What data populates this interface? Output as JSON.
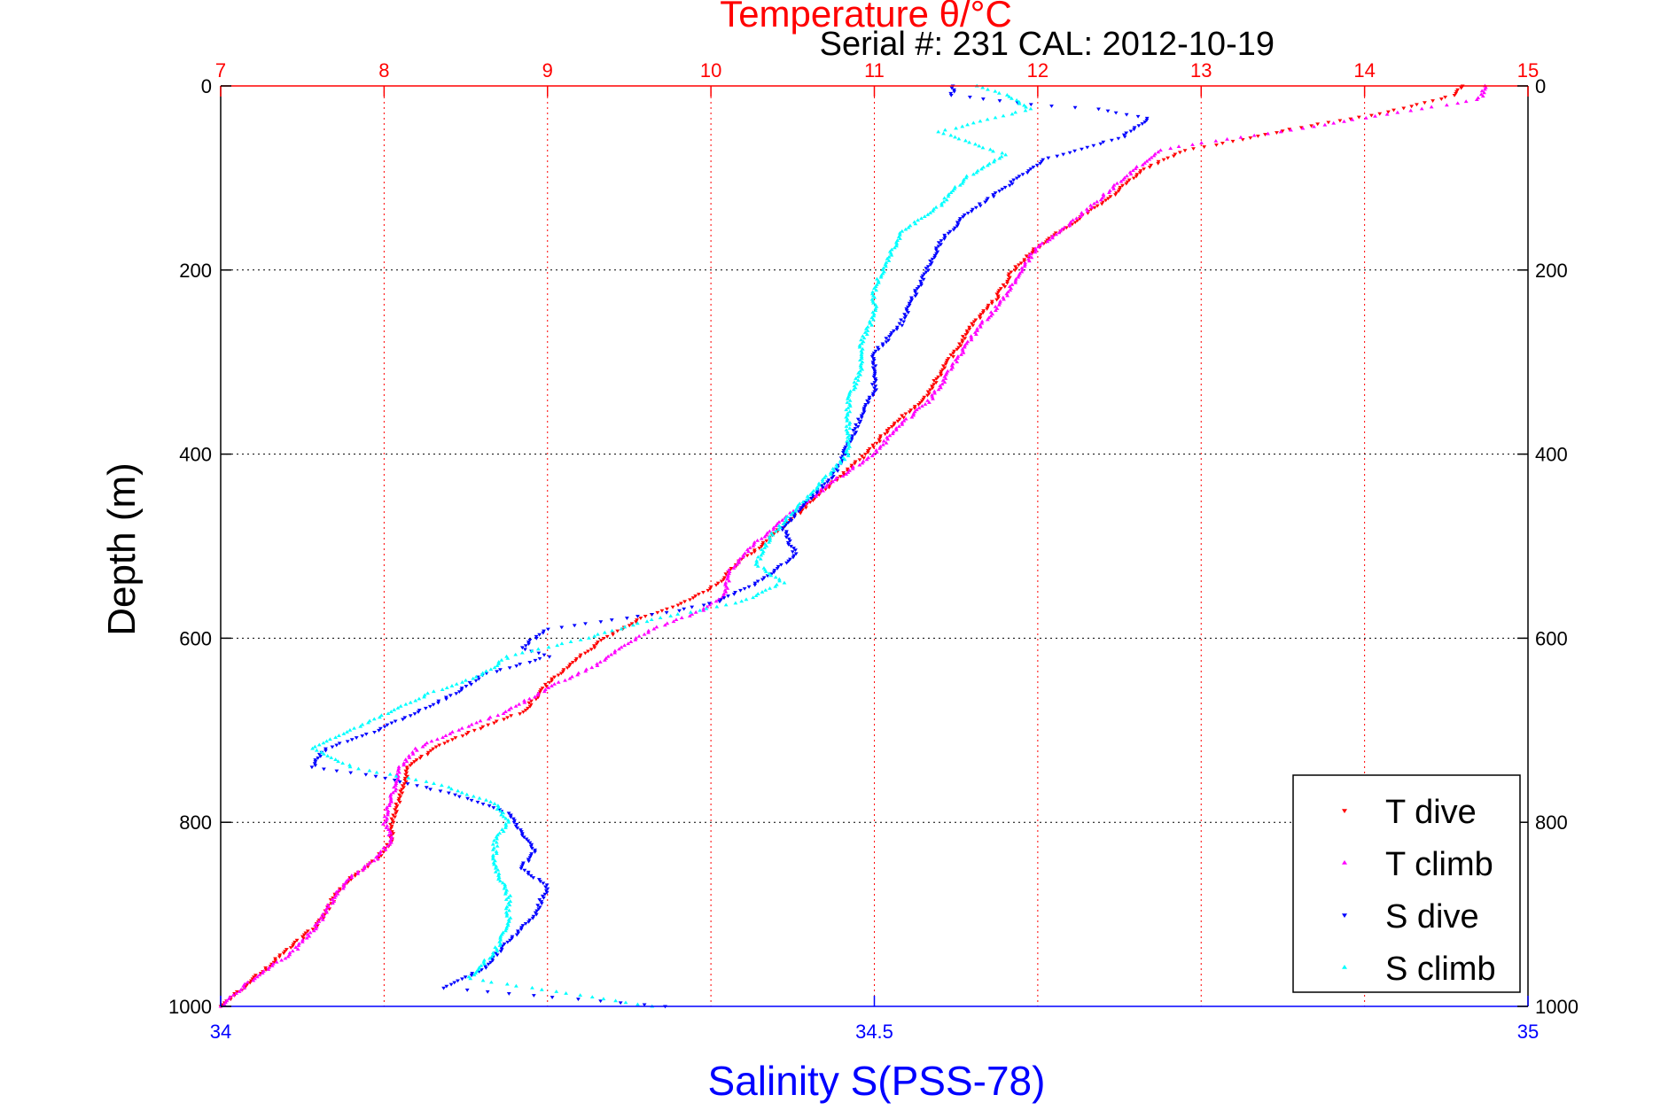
{
  "colors": {
    "temperature_axis": "#ff0000",
    "salinity_axis": "#0000ff",
    "t_dive": "#ff0000",
    "t_climb": "#ff00ff",
    "s_dive": "#0000ff",
    "s_climb": "#00ffff",
    "text": "#000000",
    "grid": "#000000"
  },
  "chart_data": {
    "type": "scatter",
    "title": "Temperature θ/°C",
    "subtitle": "Serial #: 231  CAL: 2012-10-19",
    "xlabel_top": "Temperature θ/°C",
    "xlabel_bottom": "Salinity S(PSS-78)",
    "ylabel": "Depth (m)",
    "ylim": [
      0,
      1000
    ],
    "y_reversed": true,
    "y_ticks": [
      "0",
      "200",
      "400",
      "600",
      "800",
      "1000"
    ],
    "x_top": {
      "lim": [
        7,
        15
      ],
      "ticks": [
        "7",
        "8",
        "9",
        "10",
        "11",
        "12",
        "13",
        "14",
        "15"
      ],
      "color": "red",
      "grid": true
    },
    "x_bottom": {
      "lim": [
        34,
        35
      ],
      "ticks": [
        "34",
        "34.5",
        "35"
      ],
      "color": "blue",
      "grid": false
    },
    "grid": true,
    "legend_placement": "bottom-right",
    "legend": [
      "T dive",
      "T climb",
      "S dive",
      "S climb"
    ],
    "series": [
      {
        "name": "T dive",
        "axis": "temperature",
        "marker": "triangle-down",
        "points": [
          [
            14.6,
            0
          ],
          [
            14.55,
            10
          ],
          [
            14.1,
            30
          ],
          [
            13.6,
            45
          ],
          [
            13.2,
            60
          ],
          [
            12.9,
            70
          ],
          [
            12.65,
            90
          ],
          [
            12.45,
            120
          ],
          [
            12.2,
            150
          ],
          [
            12.0,
            175
          ],
          [
            11.85,
            200
          ],
          [
            11.75,
            230
          ],
          [
            11.6,
            260
          ],
          [
            11.45,
            300
          ],
          [
            11.3,
            340
          ],
          [
            11.1,
            370
          ],
          [
            10.95,
            400
          ],
          [
            10.75,
            430
          ],
          [
            10.5,
            470
          ],
          [
            10.3,
            500
          ],
          [
            10.15,
            520
          ],
          [
            10.05,
            540
          ],
          [
            9.85,
            560
          ],
          [
            9.55,
            580
          ],
          [
            9.35,
            600
          ],
          [
            9.2,
            620
          ],
          [
            9.0,
            650
          ],
          [
            8.85,
            680
          ],
          [
            8.55,
            700
          ],
          [
            8.3,
            720
          ],
          [
            8.15,
            740
          ],
          [
            8.1,
            770
          ],
          [
            8.05,
            800
          ],
          [
            8.05,
            820
          ],
          [
            7.95,
            840
          ],
          [
            7.8,
            860
          ],
          [
            7.7,
            880
          ],
          [
            7.6,
            910
          ],
          [
            7.4,
            940
          ],
          [
            7.2,
            970
          ],
          [
            7.0,
            1000
          ]
        ]
      },
      {
        "name": "T climb",
        "axis": "temperature",
        "marker": "triangle-up",
        "points": [
          [
            14.75,
            0
          ],
          [
            14.7,
            15
          ],
          [
            14.0,
            35
          ],
          [
            13.5,
            50
          ],
          [
            13.0,
            62
          ],
          [
            12.75,
            70
          ],
          [
            12.6,
            90
          ],
          [
            12.4,
            120
          ],
          [
            12.2,
            150
          ],
          [
            12.0,
            175
          ],
          [
            11.9,
            200
          ],
          [
            11.8,
            230
          ],
          [
            11.65,
            260
          ],
          [
            11.5,
            300
          ],
          [
            11.35,
            340
          ],
          [
            11.15,
            370
          ],
          [
            11.0,
            400
          ],
          [
            10.75,
            430
          ],
          [
            10.45,
            470
          ],
          [
            10.25,
            500
          ],
          [
            10.1,
            530
          ],
          [
            10.1,
            550
          ],
          [
            9.95,
            570
          ],
          [
            9.65,
            590
          ],
          [
            9.45,
            610
          ],
          [
            9.3,
            630
          ],
          [
            9.05,
            650
          ],
          [
            8.75,
            680
          ],
          [
            8.45,
            700
          ],
          [
            8.2,
            720
          ],
          [
            8.1,
            740
          ],
          [
            8.05,
            770
          ],
          [
            8.0,
            800
          ],
          [
            8.05,
            820
          ],
          [
            7.95,
            840
          ],
          [
            7.8,
            860
          ],
          [
            7.7,
            880
          ],
          [
            7.6,
            910
          ],
          [
            7.45,
            940
          ],
          [
            7.2,
            970
          ],
          [
            7.0,
            1000
          ]
        ]
      },
      {
        "name": "S dive",
        "axis": "salinity",
        "marker": "triangle-down",
        "points": [
          [
            34.56,
            0
          ],
          [
            34.56,
            10
          ],
          [
            34.62,
            20
          ],
          [
            34.67,
            25
          ],
          [
            34.71,
            35
          ],
          [
            34.69,
            55
          ],
          [
            34.63,
            80
          ],
          [
            34.6,
            110
          ],
          [
            34.57,
            140
          ],
          [
            34.55,
            170
          ],
          [
            34.54,
            200
          ],
          [
            34.53,
            230
          ],
          [
            34.52,
            260
          ],
          [
            34.5,
            290
          ],
          [
            34.5,
            330
          ],
          [
            34.49,
            360
          ],
          [
            34.48,
            390
          ],
          [
            34.47,
            420
          ],
          [
            34.45,
            450
          ],
          [
            34.43,
            480
          ],
          [
            34.44,
            510
          ],
          [
            34.41,
            540
          ],
          [
            34.38,
            560
          ],
          [
            34.35,
            570
          ],
          [
            34.3,
            580
          ],
          [
            34.25,
            590
          ],
          [
            34.23,
            610
          ],
          [
            34.25,
            620
          ],
          [
            34.2,
            640
          ],
          [
            34.18,
            660
          ],
          [
            34.15,
            680
          ],
          [
            34.12,
            700
          ],
          [
            34.08,
            720
          ],
          [
            34.07,
            740
          ],
          [
            34.12,
            750
          ],
          [
            34.18,
            770
          ],
          [
            34.22,
            790
          ],
          [
            34.23,
            810
          ],
          [
            34.24,
            830
          ],
          [
            34.23,
            850
          ],
          [
            34.25,
            870
          ],
          [
            34.24,
            900
          ],
          [
            34.22,
            930
          ],
          [
            34.2,
            960
          ],
          [
            34.17,
            980
          ],
          [
            34.34,
            1000
          ]
        ]
      },
      {
        "name": "S climb",
        "axis": "salinity",
        "marker": "triangle-up",
        "points": [
          [
            34.58,
            0
          ],
          [
            34.6,
            10
          ],
          [
            34.62,
            25
          ],
          [
            34.55,
            50
          ],
          [
            34.6,
            75
          ],
          [
            34.57,
            100
          ],
          [
            34.55,
            130
          ],
          [
            34.52,
            160
          ],
          [
            34.51,
            190
          ],
          [
            34.5,
            220
          ],
          [
            34.5,
            250
          ],
          [
            34.49,
            280
          ],
          [
            34.49,
            310
          ],
          [
            34.48,
            340
          ],
          [
            34.48,
            370
          ],
          [
            34.48,
            400
          ],
          [
            34.46,
            430
          ],
          [
            34.44,
            460
          ],
          [
            34.42,
            490
          ],
          [
            34.41,
            520
          ],
          [
            34.43,
            540
          ],
          [
            34.4,
            560
          ],
          [
            34.33,
            580
          ],
          [
            34.28,
            600
          ],
          [
            34.22,
            620
          ],
          [
            34.2,
            640
          ],
          [
            34.16,
            660
          ],
          [
            34.13,
            680
          ],
          [
            34.1,
            700
          ],
          [
            34.07,
            720
          ],
          [
            34.1,
            740
          ],
          [
            34.17,
            760
          ],
          [
            34.21,
            780
          ],
          [
            34.22,
            800
          ],
          [
            34.21,
            820
          ],
          [
            34.21,
            850
          ],
          [
            34.22,
            880
          ],
          [
            34.22,
            910
          ],
          [
            34.21,
            940
          ],
          [
            34.19,
            970
          ],
          [
            34.33,
            1000
          ]
        ]
      }
    ]
  }
}
